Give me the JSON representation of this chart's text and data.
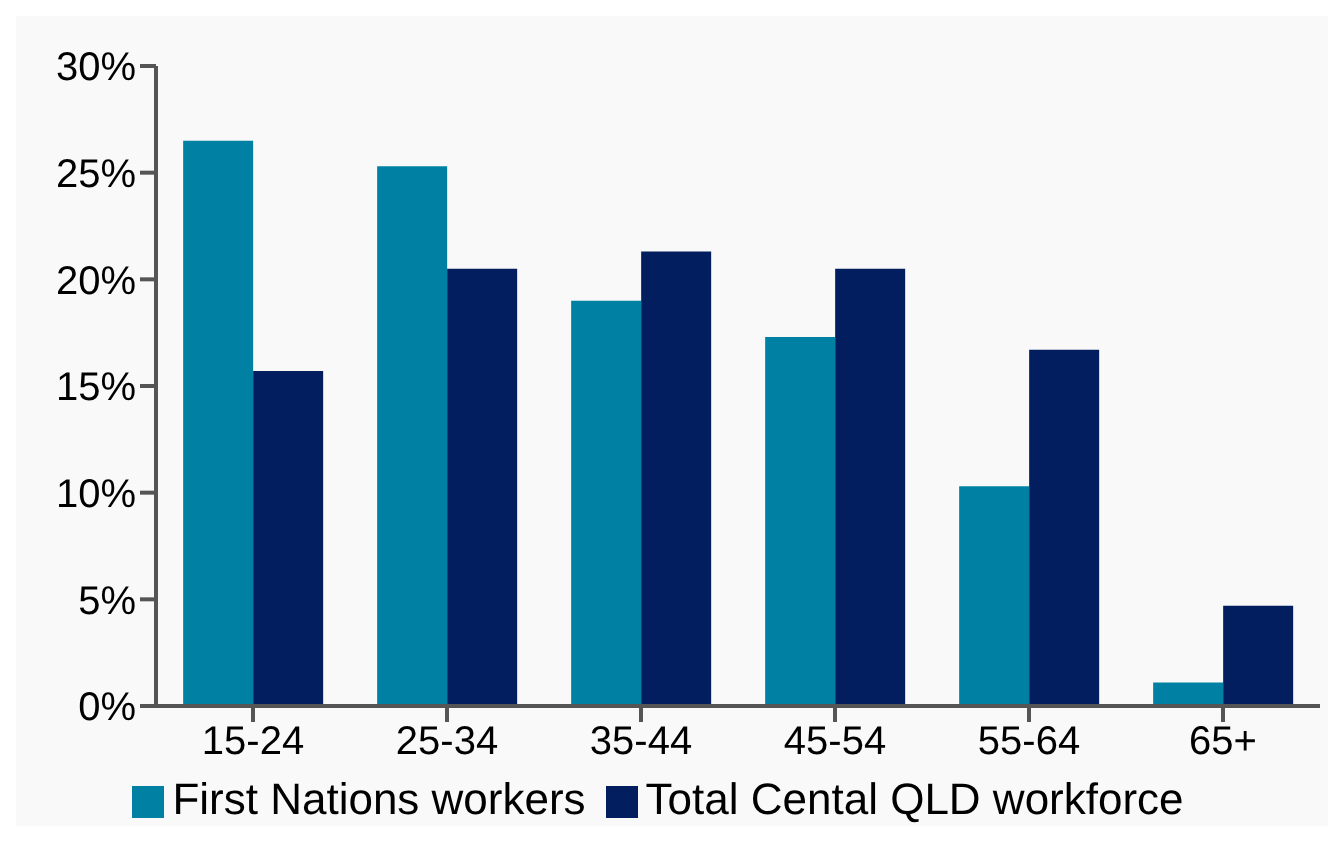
{
  "chart_data": {
    "type": "bar",
    "categories": [
      "15-24",
      "25-34",
      "35-44",
      "45-54",
      "55-64",
      "65+"
    ],
    "series": [
      {
        "name": "First Nations workers",
        "color": "#0081a4",
        "values": [
          26.5,
          25.3,
          19.0,
          17.3,
          10.3,
          1.1
        ]
      },
      {
        "name": "Total Cental QLD workforce",
        "color": "#021e5e",
        "values": [
          15.7,
          20.5,
          21.3,
          20.5,
          16.7,
          4.7
        ]
      }
    ],
    "ylim": [
      0,
      30
    ],
    "yticks": [
      {
        "value": 0,
        "label": "0%"
      },
      {
        "value": 5,
        "label": "5%"
      },
      {
        "value": 10,
        "label": "10%"
      },
      {
        "value": 15,
        "label": "15%"
      },
      {
        "value": 20,
        "label": "20%"
      },
      {
        "value": 25,
        "label": "25%"
      },
      {
        "value": 30,
        "label": "30%"
      }
    ],
    "grid": false,
    "legend": "bottom"
  }
}
